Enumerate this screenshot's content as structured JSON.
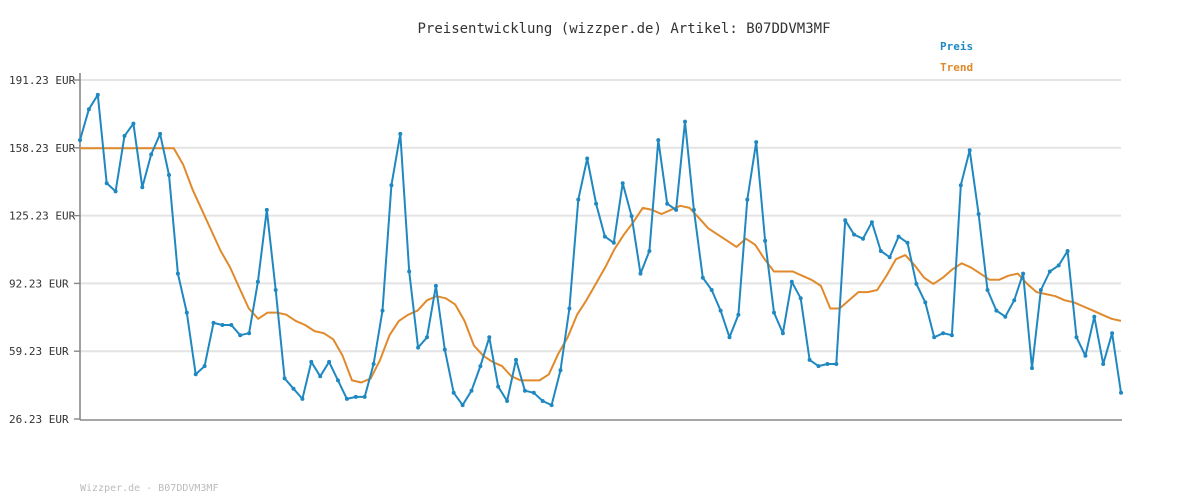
{
  "chart_data": {
    "type": "line",
    "title": "Preisentwicklung (wizzper.de) Artikel: B07DDVM3MF",
    "xlabel": "",
    "ylabel": "",
    "ylim": [
      26.23,
      191.23
    ],
    "yticks": [
      "191.23 EUR",
      "158.23 EUR",
      "125.23 EUR",
      "92.23 EUR",
      "59.23 EUR",
      "26.23 EUR"
    ],
    "ytick_values": [
      191.23,
      158.23,
      125.23,
      92.23,
      59.23,
      26.23
    ],
    "grid": true,
    "legend_position": "top-right",
    "series": [
      {
        "name": "Preis",
        "color": "#1f88c0",
        "values": [
          162,
          177,
          184,
          141,
          137,
          164,
          170,
          139,
          155,
          165,
          145,
          97,
          78,
          48,
          52,
          73,
          72,
          72,
          67,
          68,
          93,
          128,
          89,
          46,
          41,
          36,
          54,
          47,
          54,
          45,
          36,
          37,
          37,
          53,
          79,
          140,
          165,
          98,
          61,
          66,
          91,
          60,
          39,
          33,
          40,
          52,
          66,
          42,
          35,
          55,
          40,
          39,
          35,
          33,
          50,
          80,
          133,
          153,
          131,
          115,
          112,
          141,
          125,
          97,
          108,
          162,
          131,
          128,
          171,
          128,
          95,
          89,
          79,
          66,
          77,
          133,
          161,
          113,
          78,
          68,
          93,
          85,
          55,
          52,
          53,
          53,
          123,
          116,
          114,
          122,
          108,
          105,
          115,
          112,
          92,
          83,
          66,
          68,
          67,
          140,
          157,
          126,
          89,
          79,
          76,
          84,
          97,
          51,
          89,
          98,
          101,
          108,
          66,
          57,
          76,
          53,
          68,
          39
        ],
        "marker": "dot"
      },
      {
        "name": "Trend",
        "color": "#e08a2c",
        "values": [
          158,
          158,
          158,
          158,
          158,
          158,
          158,
          158,
          158,
          158,
          158,
          150,
          138,
          128,
          118,
          108,
          100,
          90,
          80,
          75,
          78,
          78,
          77,
          74,
          72,
          69,
          68,
          65,
          57,
          45,
          44,
          46,
          55,
          67,
          74,
          77,
          79,
          84,
          86,
          85,
          82,
          74,
          62,
          57,
          54,
          52,
          47,
          45,
          45,
          45,
          48,
          58,
          66,
          77,
          84,
          92,
          100,
          109,
          116,
          122,
          129,
          128,
          126,
          128,
          130,
          129,
          124,
          119,
          116,
          113,
          110,
          114,
          111,
          104,
          98,
          98,
          98,
          96,
          94,
          91,
          80,
          80,
          84,
          88,
          88,
          89,
          96,
          104,
          106,
          101,
          95,
          92,
          95,
          99,
          102,
          100,
          97,
          94,
          94,
          96,
          97,
          92,
          88,
          87,
          86,
          84,
          83,
          81,
          79,
          77,
          75,
          74
        ]
      }
    ]
  },
  "footer": "Wizzper.de - B07DDVM3MF"
}
